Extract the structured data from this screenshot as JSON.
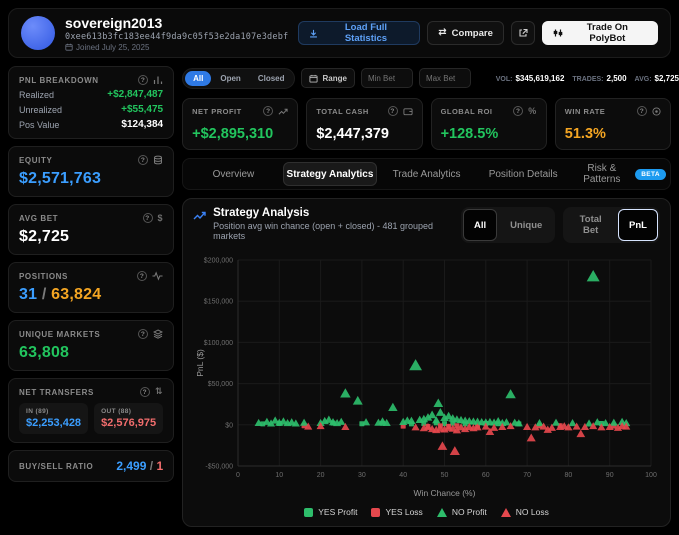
{
  "header": {
    "username": "sovereign2013",
    "address": "0xee613b3fc183ee44f9da9c05f53e2da107e3debf",
    "joined": "Joined July 25, 2025",
    "load_full_label": "Load Full Statistics",
    "compare_label": "Compare",
    "trade_label": "Trade On PolyBot"
  },
  "sidebar": {
    "pnl_breakdown": {
      "title": "PNL BREAKDOWN",
      "rows": [
        {
          "label": "Realized",
          "value": "+$2,847,487"
        },
        {
          "label": "Unrealized",
          "value": "+$55,475"
        },
        {
          "label": "Pos Value",
          "value": "$124,384"
        }
      ]
    },
    "equity": {
      "title": "EQUITY",
      "value": "$2,571,763"
    },
    "avg_bet": {
      "title": "AVG BET",
      "value": "$2,725"
    },
    "positions": {
      "title": "POSITIONS",
      "open": "31",
      "separator": "/",
      "total": "63,824"
    },
    "unique_markets": {
      "title": "UNIQUE MARKETS",
      "value": "63,808"
    },
    "net_transfers": {
      "title": "NET TRANSFERS",
      "in_label": "IN (89)",
      "in_value": "$2,253,428",
      "out_label": "OUT (88)",
      "out_value": "$2,576,975"
    },
    "buy_sell_ratio": {
      "title": "BUY/SELL RATIO",
      "buy": "2,499",
      "separator": "/",
      "sell": "1"
    }
  },
  "filters": {
    "tabs": [
      {
        "label": "All"
      },
      {
        "label": "Open"
      },
      {
        "label": "Closed"
      }
    ],
    "range_label": "Range",
    "min_bet_placeholder": "Min Bet",
    "max_bet_placeholder": "Max Bet",
    "stats": [
      {
        "label": "VOL:",
        "value": "$345,619,162"
      },
      {
        "label": "TRADES:",
        "value": "2,500"
      },
      {
        "label": "AVG:",
        "value": "$2,725"
      }
    ]
  },
  "stat_cards": [
    {
      "label": "NET PROFIT",
      "value": "+$2,895,310",
      "color": "#22c55e"
    },
    {
      "label": "TOTAL CASH",
      "value": "$2,447,379",
      "color": "#ffffff"
    },
    {
      "label": "GLOBAL ROI",
      "value": "+128.5%",
      "color": "#22c55e"
    },
    {
      "label": "WIN RATE",
      "value": "51.3%",
      "color": "#f5a623"
    }
  ],
  "main_tabs": [
    {
      "label": "Overview"
    },
    {
      "label": "Strategy Analytics"
    },
    {
      "label": "Trade Analytics"
    },
    {
      "label": "Position Details"
    },
    {
      "label": "Risk & Patterns",
      "badge": "BETA"
    }
  ],
  "chart_panel": {
    "title": "Strategy Analysis",
    "subtitle": "Position avg win chance (open + closed) - 481 grouped markets",
    "toggle_group_1": [
      {
        "label": "All"
      },
      {
        "label": "Unique"
      }
    ],
    "toggle_group_2": [
      {
        "label": "Total Bet"
      },
      {
        "label": "PnL"
      }
    ]
  },
  "chart_data": {
    "type": "scatter",
    "title": "Strategy Analysis",
    "xlabel": "Win Chance (%)",
    "ylabel": "PnL ($)",
    "xlim": [
      0,
      100
    ],
    "ylim": [
      -50000,
      200000
    ],
    "x_ticks": [
      0,
      10,
      20,
      30,
      40,
      50,
      60,
      70,
      80,
      90,
      100
    ],
    "y_ticks": [
      {
        "v": -50000,
        "label": "-$50,000"
      },
      {
        "v": 0,
        "label": "$0"
      },
      {
        "v": 50000,
        "label": "$50,000"
      },
      {
        "v": 100000,
        "label": "$100,000"
      },
      {
        "v": 150000,
        "label": "$150,000"
      },
      {
        "v": 200000,
        "label": "$200,000"
      }
    ],
    "grid": true,
    "legend_position": "bottom",
    "series": [
      {
        "name": "YES Profit",
        "marker": "square",
        "color": "#2ebd6b",
        "points": [
          [
            6,
            1100
          ],
          [
            10,
            1600
          ],
          [
            23,
            2100
          ],
          [
            30,
            1300
          ],
          [
            35,
            1900
          ],
          [
            42,
            1100
          ],
          [
            45,
            1600
          ],
          [
            48,
            2300
          ],
          [
            50,
            1400
          ],
          [
            52,
            1900
          ],
          [
            55,
            1100
          ],
          [
            60,
            1600
          ],
          [
            63,
            1300
          ],
          [
            68,
            1100
          ],
          [
            88,
            1600
          ]
        ]
      },
      {
        "name": "YES Loss",
        "marker": "square",
        "color": "#e5484d",
        "points": [
          [
            16,
            -1100
          ],
          [
            40,
            -1600
          ],
          [
            46,
            -2100
          ],
          [
            49,
            -1300
          ],
          [
            51,
            -1900
          ],
          [
            53,
            -1100
          ],
          [
            58,
            -1600
          ],
          [
            73,
            -1300
          ],
          [
            78,
            -1100
          ],
          [
            91,
            -1600
          ]
        ]
      },
      {
        "name": "NO Profit",
        "marker": "triangle",
        "color": "#2ebd6b",
        "points": [
          [
            86,
            180000
          ],
          [
            43,
            72000
          ],
          [
            26,
            38000
          ],
          [
            66,
            37000
          ],
          [
            29,
            29000
          ],
          [
            48.5,
            26000
          ],
          [
            37.5,
            21000
          ],
          [
            49,
            15000
          ],
          [
            47,
            12000
          ],
          [
            51,
            10500
          ],
          [
            46,
            9000
          ],
          [
            50,
            8500
          ],
          [
            52,
            7800
          ],
          [
            45,
            7000
          ],
          [
            53,
            6500
          ],
          [
            44,
            6000
          ],
          [
            54,
            5800
          ],
          [
            48,
            5500
          ],
          [
            55,
            5000
          ],
          [
            42,
            4800
          ],
          [
            56,
            4500
          ],
          [
            41,
            5200
          ],
          [
            57,
            4000
          ],
          [
            58,
            3800
          ],
          [
            40,
            3500
          ],
          [
            59,
            3200
          ],
          [
            60,
            3000
          ],
          [
            61,
            3400
          ],
          [
            62,
            2800
          ],
          [
            63,
            4400
          ],
          [
            64,
            2200
          ],
          [
            65,
            3100
          ],
          [
            67,
            2600
          ],
          [
            68,
            1800
          ],
          [
            5,
            2200
          ],
          [
            7,
            3600
          ],
          [
            8,
            1600
          ],
          [
            9,
            5200
          ],
          [
            10,
            2600
          ],
          [
            11,
            4100
          ],
          [
            12,
            2100
          ],
          [
            13,
            3100
          ],
          [
            14,
            1700
          ],
          [
            16,
            2600
          ],
          [
            20,
            2200
          ],
          [
            21,
            4600
          ],
          [
            22,
            6200
          ],
          [
            23,
            3200
          ],
          [
            24,
            2100
          ],
          [
            25,
            3600
          ],
          [
            31,
            3100
          ],
          [
            34,
            2600
          ],
          [
            35,
            4200
          ],
          [
            36,
            2200
          ],
          [
            73,
            2100
          ],
          [
            77,
            2600
          ],
          [
            81,
            2100
          ],
          [
            85,
            1600
          ],
          [
            87,
            3100
          ],
          [
            89,
            2100
          ],
          [
            91,
            2600
          ],
          [
            93,
            3600
          ],
          [
            94,
            2100
          ]
        ]
      },
      {
        "name": "NO Loss",
        "marker": "triangle",
        "color": "#e5484d",
        "points": [
          [
            52.5,
            -32000
          ],
          [
            49.5,
            -26000
          ],
          [
            71,
            -16000
          ],
          [
            83,
            -11000
          ],
          [
            61,
            -8500
          ],
          [
            75,
            -6000
          ],
          [
            17,
            -2100
          ],
          [
            20,
            -1600
          ],
          [
            26,
            -2600
          ],
          [
            43,
            -3100
          ],
          [
            45,
            -4100
          ],
          [
            46,
            -2600
          ],
          [
            47,
            -5100
          ],
          [
            48,
            -6200
          ],
          [
            49,
            -4600
          ],
          [
            50,
            -5600
          ],
          [
            51,
            -3600
          ],
          [
            52,
            -4600
          ],
          [
            53,
            -6600
          ],
          [
            54,
            -3100
          ],
          [
            55,
            -5100
          ],
          [
            56,
            -2600
          ],
          [
            57,
            -4100
          ],
          [
            58,
            -3100
          ],
          [
            60,
            -2100
          ],
          [
            62,
            -3600
          ],
          [
            64,
            -2600
          ],
          [
            66,
            -1600
          ],
          [
            70,
            -2600
          ],
          [
            72,
            -3100
          ],
          [
            74,
            -2100
          ],
          [
            76,
            -3600
          ],
          [
            78,
            -2600
          ],
          [
            79,
            -1600
          ],
          [
            80,
            -3100
          ],
          [
            82,
            -2100
          ],
          [
            84,
            -2600
          ],
          [
            86,
            -1600
          ],
          [
            88,
            -3100
          ],
          [
            90,
            -2600
          ],
          [
            92,
            -3600
          ],
          [
            93,
            -1600
          ],
          [
            94,
            -2100
          ]
        ]
      }
    ]
  }
}
